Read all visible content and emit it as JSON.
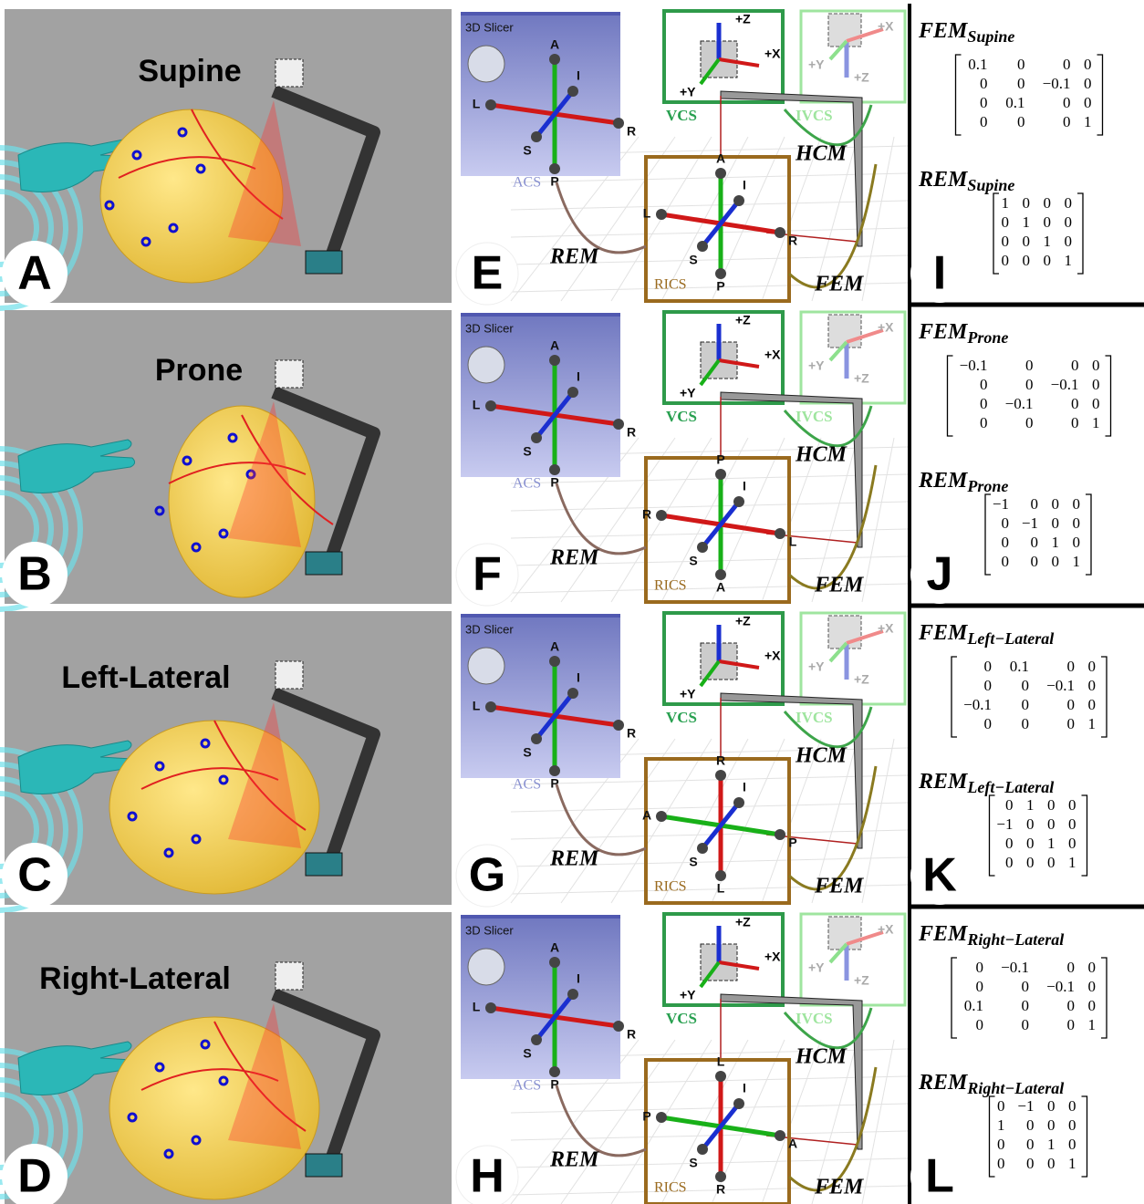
{
  "labels": {
    "slicer_title": "3D Slicer",
    "vcs": "VCS",
    "ivcs": "IVCS",
    "hcm": "HCM",
    "rem": "REM",
    "fem": "FEM",
    "rics": "RICS",
    "acs": "ACS",
    "plus_z": "+Z",
    "plus_x": "+X",
    "plus_y": "+Y"
  },
  "acs_axes": {
    "top": "A",
    "bottom": "P",
    "left": "L",
    "right": "R",
    "i": "I",
    "s": "S"
  },
  "rows": [
    {
      "position": "Supine",
      "letters": [
        "A",
        "E",
        "I"
      ],
      "subscript": "Supine",
      "rics_axes": {
        "top": "A",
        "bottom": "P",
        "left": "L",
        "right": "R",
        "i": "I",
        "s": "S"
      },
      "fem": [
        [
          "0.1",
          "0",
          "0",
          "0"
        ],
        [
          "0",
          "0",
          "−0.1",
          "0"
        ],
        [
          "0",
          "0.1",
          "0",
          "0"
        ],
        [
          "0",
          "0",
          "0",
          "1"
        ]
      ],
      "rem": [
        [
          "1",
          "0",
          "0",
          "0"
        ],
        [
          "0",
          "1",
          "0",
          "0"
        ],
        [
          "0",
          "0",
          "1",
          "0"
        ],
        [
          "0",
          "0",
          "0",
          "1"
        ]
      ]
    },
    {
      "position": "Prone",
      "letters": [
        "B",
        "F",
        "J"
      ],
      "subscript": "Prone",
      "rics_axes": {
        "top": "P",
        "bottom": "A",
        "left": "R",
        "right": "L",
        "i": "I",
        "s": "S"
      },
      "fem": [
        [
          "−0.1",
          "0",
          "0",
          "0"
        ],
        [
          "0",
          "0",
          "−0.1",
          "0"
        ],
        [
          "0",
          "−0.1",
          "0",
          "0"
        ],
        [
          "0",
          "0",
          "0",
          "1"
        ]
      ],
      "rem": [
        [
          "−1",
          "0",
          "0",
          "0"
        ],
        [
          "0",
          "−1",
          "0",
          "0"
        ],
        [
          "0",
          "0",
          "1",
          "0"
        ],
        [
          "0",
          "0",
          "0",
          "1"
        ]
      ]
    },
    {
      "position": "Left-Lateral",
      "letters": [
        "C",
        "G",
        "K"
      ],
      "subscript": "Left−Lateral",
      "rics_axes": {
        "top": "R",
        "bottom": "L",
        "left": "A",
        "right": "P",
        "i": "I",
        "s": "S"
      },
      "fem": [
        [
          "0",
          "0.1",
          "0",
          "0"
        ],
        [
          "0",
          "0",
          "−0.1",
          "0"
        ],
        [
          "−0.1",
          "0",
          "0",
          "0"
        ],
        [
          "0",
          "0",
          "0",
          "1"
        ]
      ],
      "rem": [
        [
          "0",
          "1",
          "0",
          "0"
        ],
        [
          "−1",
          "0",
          "0",
          "0"
        ],
        [
          "0",
          "0",
          "1",
          "0"
        ],
        [
          "0",
          "0",
          "0",
          "1"
        ]
      ]
    },
    {
      "position": "Right-Lateral",
      "letters": [
        "D",
        "H",
        "L"
      ],
      "subscript": "Right−Lateral",
      "rics_axes": {
        "top": "L",
        "bottom": "R",
        "left": "P",
        "right": "A",
        "i": "I",
        "s": "S"
      },
      "fem": [
        [
          "0",
          "−0.1",
          "0",
          "0"
        ],
        [
          "0",
          "0",
          "−0.1",
          "0"
        ],
        [
          "0.1",
          "0",
          "0",
          "0"
        ],
        [
          "0",
          "0",
          "0",
          "1"
        ]
      ],
      "rem": [
        [
          "0",
          "−1",
          "0",
          "0"
        ],
        [
          "1",
          "0",
          "0",
          "0"
        ],
        [
          "0",
          "0",
          "1",
          "0"
        ],
        [
          "0",
          "0",
          "0",
          "1"
        ]
      ]
    }
  ]
}
